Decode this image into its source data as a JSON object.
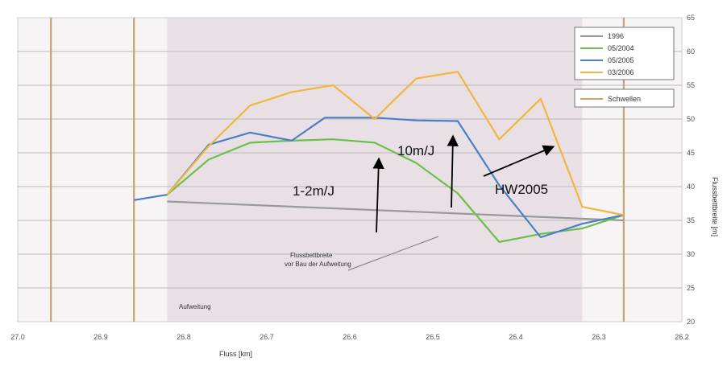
{
  "chart_data": {
    "type": "line",
    "xlabel": "Fluss [km]",
    "ylabel": "Flussbettbreite [m]",
    "xlim": [
      27.0,
      26.2
    ],
    "ylim": [
      20,
      65
    ],
    "x_ticks": [
      "27.0",
      "26.9",
      "26.8",
      "26.7",
      "26.6",
      "26.5",
      "26.4",
      "26.3",
      "26.2"
    ],
    "y_ticks": [
      "20",
      "25",
      "30",
      "35",
      "40",
      "45",
      "50",
      "55",
      "60",
      "65"
    ],
    "grid": "horizontal",
    "legend_position": "top-right",
    "shaded_region": {
      "x": [
        26.82,
        26.32
      ],
      "label": "Aufweitung",
      "color": "#e9e0e6"
    },
    "vertical_markers": {
      "name": "Schwellen",
      "x": [
        26.96,
        26.86,
        26.27
      ],
      "color": "#c8a46e"
    },
    "series": [
      {
        "name": "1996",
        "color": "#999999",
        "x": [
          26.82,
          26.27
        ],
        "values": [
          37.8,
          35.0
        ]
      },
      {
        "name": "05/2004",
        "color": "#6cc04a",
        "x": [
          26.82,
          26.77,
          26.72,
          26.67,
          26.62,
          26.57,
          26.52,
          26.47,
          26.42,
          26.37,
          26.32,
          26.27
        ],
        "values": [
          38.8,
          44.0,
          46.5,
          46.8,
          47.0,
          46.5,
          43.5,
          39.0,
          31.8,
          33.0,
          33.8,
          35.8
        ]
      },
      {
        "name": "05/2005",
        "color": "#4a7fc8",
        "x": [
          26.86,
          26.82,
          26.77,
          26.72,
          26.67,
          26.63,
          26.57,
          26.52,
          26.47,
          26.42,
          26.37,
          26.32,
          26.27
        ],
        "values": [
          38.0,
          38.8,
          46.2,
          48.0,
          46.8,
          50.2,
          50.2,
          49.8,
          49.7,
          40.2,
          32.5,
          34.5,
          35.8
        ]
      },
      {
        "name": "03/2006",
        "color": "#f2b53e",
        "x": [
          26.82,
          26.77,
          26.72,
          26.67,
          26.62,
          26.57,
          26.52,
          26.47,
          26.42,
          26.37,
          26.32,
          26.27
        ],
        "values": [
          38.8,
          46.0,
          52.0,
          54.0,
          55.0,
          50.0,
          56.0,
          57.0,
          47.0,
          53.0,
          37.0,
          35.8
        ]
      }
    ],
    "annotations": [
      {
        "text": "1-2m/J"
      },
      {
        "text": "10m/J"
      },
      {
        "text": "HW2005"
      },
      {
        "lines": [
          "Flussbettbreite",
          "vor Bau der Aufweitung"
        ]
      }
    ]
  }
}
